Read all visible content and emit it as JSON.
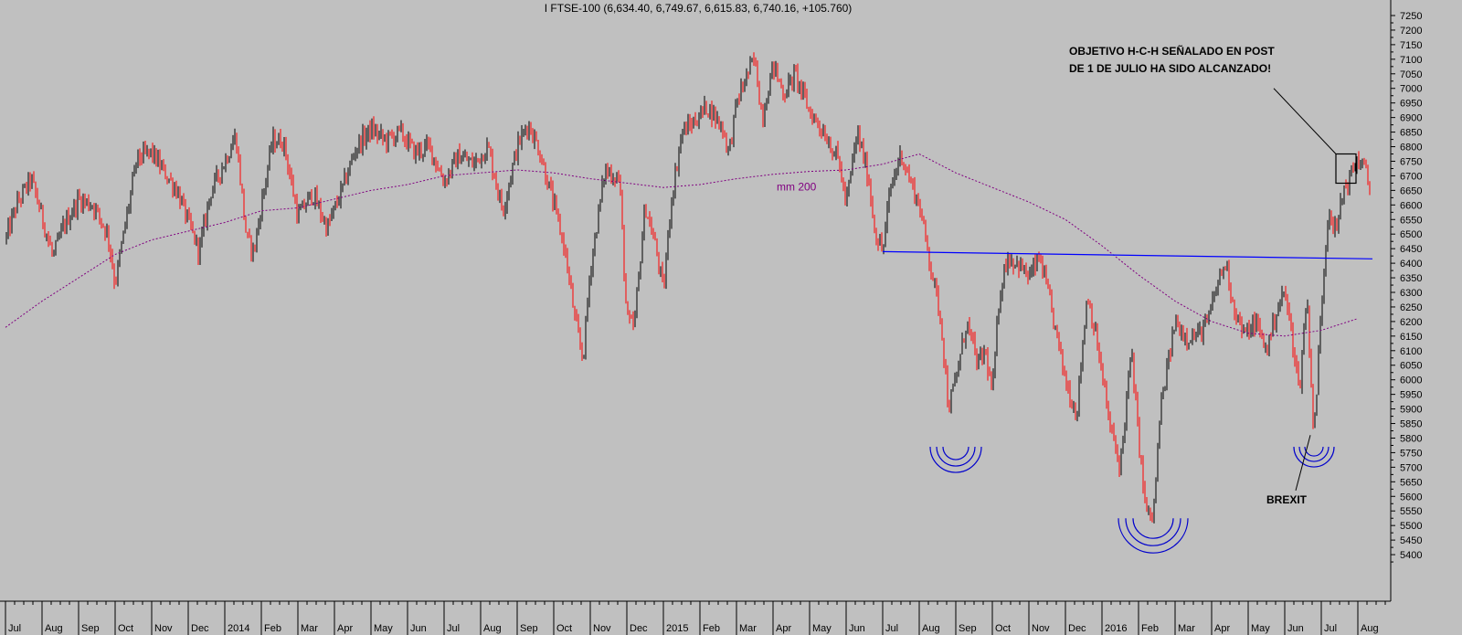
{
  "chart_data": {
    "type": "candlestick",
    "title": "I FTSE-100 (6,634.40, 6,749.67, 6,615.83, 6,740.16, +105.760)",
    "ylim": [
      5375,
      7275
    ],
    "yticks": [
      5400,
      5450,
      5500,
      5550,
      5600,
      5650,
      5700,
      5750,
      5800,
      5850,
      5900,
      5950,
      6000,
      6050,
      6100,
      6150,
      6200,
      6250,
      6300,
      6350,
      6400,
      6450,
      6500,
      6550,
      6600,
      6650,
      6700,
      6750,
      6800,
      6850,
      6900,
      6950,
      7000,
      7050,
      7100,
      7150,
      7200,
      7250
    ],
    "xticks": [
      {
        "label": "Jul",
        "month": 0
      },
      {
        "label": "Aug",
        "month": 1
      },
      {
        "label": "Sep",
        "month": 2
      },
      {
        "label": "Oct",
        "month": 3
      },
      {
        "label": "Nov",
        "month": 4
      },
      {
        "label": "Dec",
        "month": 5
      },
      {
        "label": "2014",
        "month": 6
      },
      {
        "label": "Feb",
        "month": 7
      },
      {
        "label": "Mar",
        "month": 8
      },
      {
        "label": "Apr",
        "month": 9
      },
      {
        "label": "May",
        "month": 10
      },
      {
        "label": "Jun",
        "month": 11
      },
      {
        "label": "Jul",
        "month": 12
      },
      {
        "label": "Aug",
        "month": 13
      },
      {
        "label": "Sep",
        "month": 14
      },
      {
        "label": "Oct",
        "month": 15
      },
      {
        "label": "Nov",
        "month": 16
      },
      {
        "label": "Dec",
        "month": 17
      },
      {
        "label": "2015",
        "month": 18
      },
      {
        "label": "Feb",
        "month": 19
      },
      {
        "label": "Mar",
        "month": 20
      },
      {
        "label": "Apr",
        "month": 21
      },
      {
        "label": "May",
        "month": 22
      },
      {
        "label": "Jun",
        "month": 23
      },
      {
        "label": "Jul",
        "month": 24
      },
      {
        "label": "Aug",
        "month": 25
      },
      {
        "label": "Sep",
        "month": 26
      },
      {
        "label": "Oct",
        "month": 27
      },
      {
        "label": "Nov",
        "month": 28
      },
      {
        "label": "Dec",
        "month": 29
      },
      {
        "label": "2016",
        "month": 30
      },
      {
        "label": "Feb",
        "month": 31
      },
      {
        "label": "Mar",
        "month": 32
      },
      {
        "label": "Apr",
        "month": 33
      },
      {
        "label": "May",
        "month": 34
      },
      {
        "label": "Jun",
        "month": 35
      },
      {
        "label": "Jul",
        "month": 36
      },
      {
        "label": "Aug",
        "month": 37
      }
    ],
    "price_path": [
      [
        0,
        6480
      ],
      [
        0.3,
        6600
      ],
      [
        0.7,
        6690
      ],
      [
        1.0,
        6560
      ],
      [
        1.3,
        6420
      ],
      [
        1.6,
        6530
      ],
      [
        2.0,
        6620
      ],
      [
        2.4,
        6600
      ],
      [
        2.8,
        6500
      ],
      [
        3.0,
        6330
      ],
      [
        3.3,
        6550
      ],
      [
        3.6,
        6760
      ],
      [
        4.0,
        6780
      ],
      [
        4.3,
        6720
      ],
      [
        4.7,
        6650
      ],
      [
        5.0,
        6540
      ],
      [
        5.3,
        6440
      ],
      [
        5.6,
        6640
      ],
      [
        6.0,
        6750
      ],
      [
        6.3,
        6840
      ],
      [
        6.6,
        6480
      ],
      [
        6.8,
        6440
      ],
      [
        7.0,
        6600
      ],
      [
        7.3,
        6820
      ],
      [
        7.6,
        6820
      ],
      [
        8.0,
        6560
      ],
      [
        8.4,
        6640
      ],
      [
        8.8,
        6520
      ],
      [
        9.2,
        6650
      ],
      [
        9.6,
        6800
      ],
      [
        10.0,
        6860
      ],
      [
        10.4,
        6820
      ],
      [
        10.8,
        6850
      ],
      [
        11.2,
        6780
      ],
      [
        11.6,
        6800
      ],
      [
        12.0,
        6680
      ],
      [
        12.4,
        6770
      ],
      [
        12.8,
        6740
      ],
      [
        13.2,
        6800
      ],
      [
        13.6,
        6580
      ],
      [
        14.0,
        6800
      ],
      [
        14.3,
        6880
      ],
      [
        14.6,
        6790
      ],
      [
        15.0,
        6600
      ],
      [
        15.3,
        6450
      ],
      [
        15.6,
        6190
      ],
      [
        15.8,
        6070
      ],
      [
        16.0,
        6380
      ],
      [
        16.4,
        6720
      ],
      [
        16.8,
        6690
      ],
      [
        17.0,
        6200
      ],
      [
        17.2,
        6180
      ],
      [
        17.5,
        6600
      ],
      [
        17.8,
        6450
      ],
      [
        18.0,
        6300
      ],
      [
        18.2,
        6600
      ],
      [
        18.5,
        6850
      ],
      [
        18.8,
        6880
      ],
      [
        19.2,
        6940
      ],
      [
        19.6,
        6870
      ],
      [
        19.8,
        6780
      ],
      [
        20.0,
        6950
      ],
      [
        20.3,
        7050
      ],
      [
        20.5,
        7100
      ],
      [
        20.7,
        6900
      ],
      [
        21.0,
        7080
      ],
      [
        21.3,
        6980
      ],
      [
        21.6,
        7050
      ],
      [
        22.0,
        6920
      ],
      [
        22.4,
        6850
      ],
      [
        22.8,
        6750
      ],
      [
        23.0,
        6600
      ],
      [
        23.3,
        6850
      ],
      [
        23.6,
        6700
      ],
      [
        23.8,
        6500
      ],
      [
        24.0,
        6440
      ],
      [
        24.2,
        6650
      ],
      [
        24.5,
        6780
      ],
      [
        24.7,
        6700
      ],
      [
        25.0,
        6600
      ],
      [
        25.3,
        6400
      ],
      [
        25.6,
        6200
      ],
      [
        25.8,
        5900
      ],
      [
        26.0,
        6000
      ],
      [
        26.3,
        6200
      ],
      [
        26.6,
        6050
      ],
      [
        26.8,
        6100
      ],
      [
        27.0,
        5950
      ],
      [
        27.2,
        6300
      ],
      [
        27.4,
        6420
      ],
      [
        27.7,
        6400
      ],
      [
        28.0,
        6350
      ],
      [
        28.3,
        6420
      ],
      [
        28.6,
        6250
      ],
      [
        29.0,
        6000
      ],
      [
        29.3,
        5880
      ],
      [
        29.6,
        6300
      ],
      [
        29.9,
        6100
      ],
      [
        30.2,
        5850
      ],
      [
        30.5,
        5700
      ],
      [
        30.8,
        6100
      ],
      [
        31.0,
        5800
      ],
      [
        31.2,
        5550
      ],
      [
        31.4,
        5520
      ],
      [
        31.6,
        5900
      ],
      [
        31.8,
        6050
      ],
      [
        32.0,
        6200
      ],
      [
        32.3,
        6150
      ],
      [
        32.6,
        6150
      ],
      [
        32.9,
        6200
      ],
      [
        33.2,
        6350
      ],
      [
        33.4,
        6400
      ],
      [
        33.6,
        6250
      ],
      [
        33.9,
        6150
      ],
      [
        34.2,
        6200
      ],
      [
        34.5,
        6100
      ],
      [
        34.8,
        6250
      ],
      [
        35.0,
        6300
      ],
      [
        35.2,
        6150
      ],
      [
        35.4,
        5960
      ],
      [
        35.6,
        6300
      ],
      [
        35.8,
        5800
      ],
      [
        36.0,
        6250
      ],
      [
        36.2,
        6600
      ],
      [
        36.4,
        6500
      ],
      [
        36.6,
        6650
      ],
      [
        36.8,
        6700
      ],
      [
        37.0,
        6760
      ],
      [
        37.2,
        6720
      ],
      [
        37.35,
        6640
      ]
    ],
    "ma200_path": [
      [
        0,
        6180
      ],
      [
        1,
        6270
      ],
      [
        2,
        6350
      ],
      [
        3,
        6430
      ],
      [
        4,
        6480
      ],
      [
        5,
        6510
      ],
      [
        6,
        6540
      ],
      [
        7,
        6580
      ],
      [
        8,
        6590
      ],
      [
        9,
        6620
      ],
      [
        10,
        6650
      ],
      [
        11,
        6670
      ],
      [
        12,
        6700
      ],
      [
        13,
        6710
      ],
      [
        14,
        6720
      ],
      [
        15,
        6710
      ],
      [
        16,
        6690
      ],
      [
        17,
        6675
      ],
      [
        18,
        6660
      ],
      [
        19,
        6670
      ],
      [
        20,
        6690
      ],
      [
        21,
        6705
      ],
      [
        22,
        6715
      ],
      [
        23,
        6720
      ],
      [
        24,
        6740
      ],
      [
        25,
        6775
      ],
      [
        26,
        6710
      ],
      [
        27,
        6660
      ],
      [
        28,
        6610
      ],
      [
        29,
        6550
      ],
      [
        30,
        6460
      ],
      [
        31,
        6360
      ],
      [
        32,
        6270
      ],
      [
        33,
        6200
      ],
      [
        34,
        6160
      ],
      [
        35,
        6150
      ],
      [
        36,
        6170
      ],
      [
        37,
        6210
      ]
    ],
    "neckline": {
      "from": [
        24.0,
        6440
      ],
      "to": [
        37.4,
        6415
      ]
    },
    "ma_label": "mm 200",
    "annotation": [
      "OBJETIVO H-C-H SEÑALADO EN POST",
      "DE 1 DE JULIO HA SIDO ALCANZADO!"
    ],
    "brexit_label": "BREXIT",
    "colors": {
      "up": "#000000",
      "down": "#ff0000",
      "ma": "#800080",
      "neckline": "#0000ff",
      "arcs": "#0000cc",
      "bg": "#c0c0c0"
    }
  }
}
